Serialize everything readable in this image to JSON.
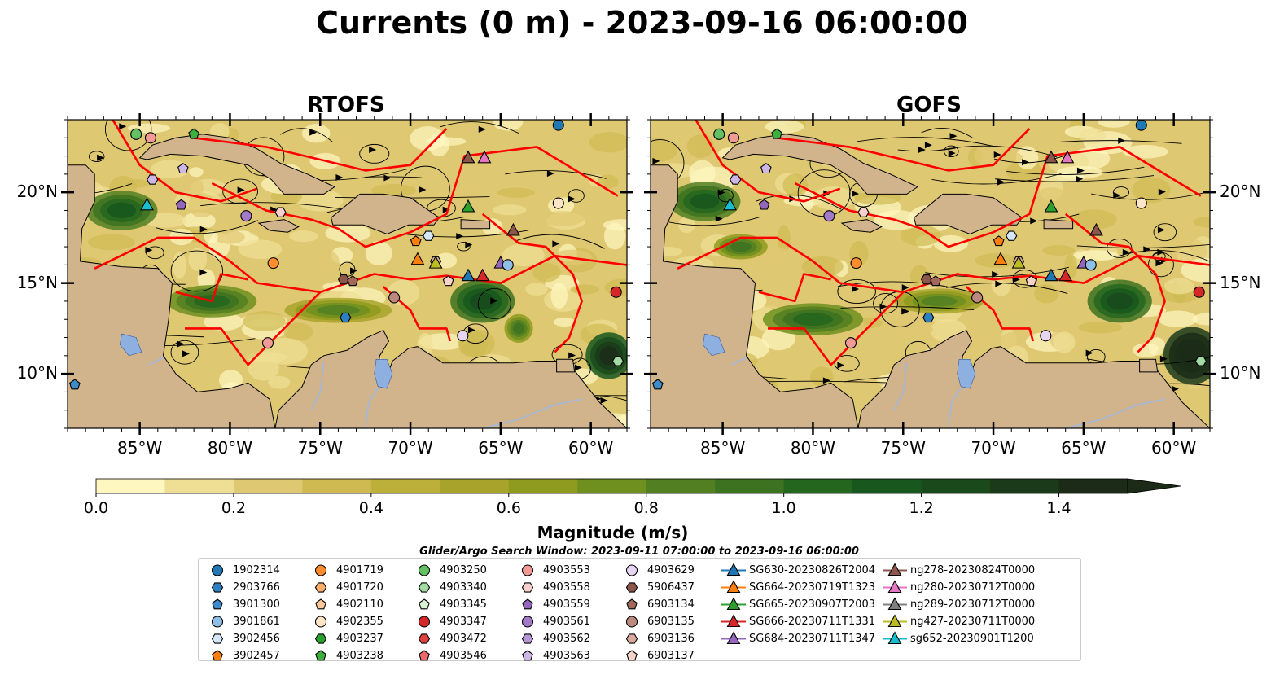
{
  "title": "Currents (0 m) - 2023-09-16 06:00:00",
  "panels": [
    {
      "title": "RTOFS"
    },
    {
      "title": "GOFS"
    }
  ],
  "map": {
    "lon_range": [
      -89.0,
      -58.0
    ],
    "lat_range": [
      7.0,
      24.0
    ],
    "lon_ticks": [
      -85,
      -80,
      -75,
      -70,
      -65,
      -60
    ],
    "lon_tick_labels": [
      "85°W",
      "80°W",
      "75°W",
      "70°W",
      "65°W",
      "60°W"
    ],
    "lat_ticks": [
      20,
      15,
      10
    ],
    "lat_tick_labels": [
      "20°N",
      "15°N",
      "10°N"
    ],
    "colors": {
      "land": "#d2b48c",
      "lake": "#8db0e0",
      "river": "#a0b8e0",
      "eez": "#ff0000",
      "streamline": "#000000"
    }
  },
  "colorbar": {
    "label": "Magnitude (m/s)",
    "min": 0.0,
    "max": 1.5,
    "extend": "max",
    "ticks": [
      "0.0",
      "0.2",
      "0.4",
      "0.6",
      "0.8",
      "1.0",
      "1.2",
      "1.4"
    ],
    "tick_values": [
      0.0,
      0.2,
      0.4,
      0.6,
      0.8,
      1.0,
      1.2,
      1.4
    ],
    "colors": [
      "#fef7c0",
      "#efdf95",
      "#dfc872",
      "#cfba52",
      "#bcaf3a",
      "#a8a32a",
      "#8f9b1e",
      "#6f8f1f",
      "#527f22",
      "#3d7220",
      "#25661f",
      "#18571d",
      "#1a4a1c",
      "#1b3a1a",
      "#1b2b17"
    ]
  },
  "legend_title": "Glider/Argo Search Window: 2023-09-11 07:00:00 to 2023-09-16 06:00:00",
  "legend_columns": [
    [
      {
        "label": "1902314",
        "marker": "circle",
        "color": "#1f77b4"
      },
      {
        "label": "2903766",
        "marker": "hexagon",
        "color": "#2d7fbf"
      },
      {
        "label": "3901300",
        "marker": "pentagon",
        "color": "#3b8cc9"
      },
      {
        "label": "3901861",
        "marker": "circle",
        "color": "#8fbee6"
      },
      {
        "label": "3902456",
        "marker": "hexagon",
        "color": "#d4e6f7"
      },
      {
        "label": "3902457",
        "marker": "pentagon",
        "color": "#ff7f0e"
      }
    ],
    [
      {
        "label": "4901719",
        "marker": "circle",
        "color": "#ff8c2e"
      },
      {
        "label": "4901720",
        "marker": "hexagon",
        "color": "#ffae6b"
      },
      {
        "label": "4902110",
        "marker": "pentagon",
        "color": "#ffc896"
      },
      {
        "label": "4902355",
        "marker": "circle",
        "color": "#fde6c8"
      },
      {
        "label": "4903237",
        "marker": "hexagon",
        "color": "#2ca02c"
      },
      {
        "label": "4903238",
        "marker": "pentagon",
        "color": "#3cb03c"
      }
    ],
    [
      {
        "label": "4903250",
        "marker": "circle",
        "color": "#63c163"
      },
      {
        "label": "4903340",
        "marker": "hexagon",
        "color": "#a2dca2"
      },
      {
        "label": "4903345",
        "marker": "pentagon",
        "color": "#d8f2d3"
      },
      {
        "label": "4903347",
        "marker": "circle",
        "color": "#d62728"
      },
      {
        "label": "4903472",
        "marker": "hexagon",
        "color": "#e0413d"
      },
      {
        "label": "4903546",
        "marker": "pentagon",
        "color": "#ec6b68"
      }
    ],
    [
      {
        "label": "4903553",
        "marker": "circle",
        "color": "#f19a96"
      },
      {
        "label": "4903558",
        "marker": "hexagon",
        "color": "#f9d0cc"
      },
      {
        "label": "4903559",
        "marker": "pentagon",
        "color": "#9467bd"
      },
      {
        "label": "4903561",
        "marker": "circle",
        "color": "#a27ac8"
      },
      {
        "label": "4903562",
        "marker": "hexagon",
        "color": "#b697d6"
      },
      {
        "label": "4903563",
        "marker": "pentagon",
        "color": "#cdb7e6"
      }
    ],
    [
      {
        "label": "4903629",
        "marker": "circle",
        "color": "#e5d5f2"
      },
      {
        "label": "5906437",
        "marker": "hexagon",
        "color": "#8c564b"
      },
      {
        "label": "6903134",
        "marker": "pentagon",
        "color": "#a1685b"
      },
      {
        "label": "6903135",
        "marker": "circle",
        "color": "#bb8a7c"
      },
      {
        "label": "6903136",
        "marker": "hexagon",
        "color": "#d8ab9c"
      },
      {
        "label": "6903137",
        "marker": "pentagon",
        "color": "#f5d3c8"
      }
    ],
    [
      {
        "label": "SG630-20230826T2004",
        "marker": "triangle",
        "color": "#1f77b4"
      },
      {
        "label": "SG664-20230719T1323",
        "marker": "triangle",
        "color": "#ff7f0e"
      },
      {
        "label": "SG665-20230907T2003",
        "marker": "triangle",
        "color": "#2ca02c"
      },
      {
        "label": "SG666-20230711T1331",
        "marker": "triangle",
        "color": "#d62728"
      },
      {
        "label": "SG684-20230711T1347",
        "marker": "triangle",
        "color": "#9467bd"
      }
    ],
    [
      {
        "label": "ng278-20230824T0000",
        "marker": "triangle",
        "color": "#8c564b"
      },
      {
        "label": "ng280-20230712T0000",
        "marker": "triangle",
        "color": "#e377c2"
      },
      {
        "label": "ng289-20230712T0000",
        "marker": "triangle",
        "color": "#7f7f7f"
      },
      {
        "label": "ng427-20230711T0000",
        "marker": "triangle",
        "color": "#bcbd22"
      },
      {
        "label": "sg652-20230901T1200",
        "marker": "triangle",
        "color": "#17becf"
      }
    ]
  ],
  "markers_on_map": [
    {
      "lon": -85.2,
      "lat": 23.2,
      "color": "#63c163",
      "marker": "circle"
    },
    {
      "lon": -84.4,
      "lat": 23.0,
      "color": "#f19a96",
      "marker": "circle"
    },
    {
      "lon": -82.0,
      "lat": 23.2,
      "color": "#3cb03c",
      "marker": "pentagon"
    },
    {
      "lon": -84.3,
      "lat": 20.7,
      "color": "#cdb7e6",
      "marker": "hexagon"
    },
    {
      "lon": -82.6,
      "lat": 21.3,
      "color": "#cdb7e6",
      "marker": "pentagon"
    },
    {
      "lon": -82.7,
      "lat": 19.3,
      "color": "#9467bd",
      "marker": "pentagon"
    },
    {
      "lon": -84.6,
      "lat": 19.3,
      "color": "#17becf",
      "marker": "triangle"
    },
    {
      "lon": -79.1,
      "lat": 18.7,
      "color": "#a27ac8",
      "marker": "circle"
    },
    {
      "lon": -77.2,
      "lat": 18.9,
      "color": "#f9d0cc",
      "marker": "hexagon"
    },
    {
      "lon": -77.6,
      "lat": 16.1,
      "color": "#ff8c2e",
      "marker": "circle"
    },
    {
      "lon": -73.7,
      "lat": 15.2,
      "color": "#8c564b",
      "marker": "hexagon"
    },
    {
      "lon": -73.2,
      "lat": 15.1,
      "color": "#a1685b",
      "marker": "pentagon"
    },
    {
      "lon": -73.6,
      "lat": 13.1,
      "color": "#2d7fbf",
      "marker": "hexagon"
    },
    {
      "lon": -70.9,
      "lat": 14.2,
      "color": "#bb8a7c",
      "marker": "circle"
    },
    {
      "lon": -77.9,
      "lat": 11.7,
      "color": "#f19a96",
      "marker": "circle"
    },
    {
      "lon": -69.0,
      "lat": 17.6,
      "color": "#d4e6f7",
      "marker": "hexagon"
    },
    {
      "lon": -69.7,
      "lat": 17.3,
      "color": "#ff7f0e",
      "marker": "pentagon"
    },
    {
      "lon": -69.6,
      "lat": 16.3,
      "color": "#ff7f0e",
      "marker": "triangle"
    },
    {
      "lon": -68.6,
      "lat": 16.2,
      "color": "#d8ab9c",
      "marker": "hexagon"
    },
    {
      "lon": -68.6,
      "lat": 16.1,
      "color": "#bcbd22",
      "marker": "triangle"
    },
    {
      "lon": -67.9,
      "lat": 15.1,
      "color": "#f5d3c8",
      "marker": "pentagon"
    },
    {
      "lon": -66.8,
      "lat": 15.4,
      "color": "#1f77b4",
      "marker": "triangle"
    },
    {
      "lon": -66.0,
      "lat": 15.4,
      "color": "#d62728",
      "marker": "triangle"
    },
    {
      "lon": -66.8,
      "lat": 19.2,
      "color": "#2ca02c",
      "marker": "triangle"
    },
    {
      "lon": -66.8,
      "lat": 21.9,
      "color": "#8c564b",
      "marker": "triangle"
    },
    {
      "lon": -65.9,
      "lat": 21.9,
      "color": "#e377c2",
      "marker": "triangle"
    },
    {
      "lon": -64.3,
      "lat": 17.9,
      "color": "#8c564b",
      "marker": "triangle"
    },
    {
      "lon": -65.0,
      "lat": 16.1,
      "color": "#9467bd",
      "marker": "triangle"
    },
    {
      "lon": -64.6,
      "lat": 16.0,
      "color": "#8fbee6",
      "marker": "circle"
    },
    {
      "lon": -67.1,
      "lat": 12.1,
      "color": "#e5d5f2",
      "marker": "circle"
    },
    {
      "lon": -61.8,
      "lat": 23.7,
      "color": "#1f77b4",
      "marker": "circle"
    },
    {
      "lon": -61.8,
      "lat": 19.4,
      "color": "#fde6c8",
      "marker": "circle"
    },
    {
      "lon": -58.6,
      "lat": 14.5,
      "color": "#d62728",
      "marker": "circle"
    },
    {
      "lon": -58.5,
      "lat": 10.7,
      "color": "#a2dca2",
      "marker": "hexagon"
    },
    {
      "lon": -88.6,
      "lat": 9.4,
      "color": "#3b8cc9",
      "marker": "pentagon"
    }
  ]
}
